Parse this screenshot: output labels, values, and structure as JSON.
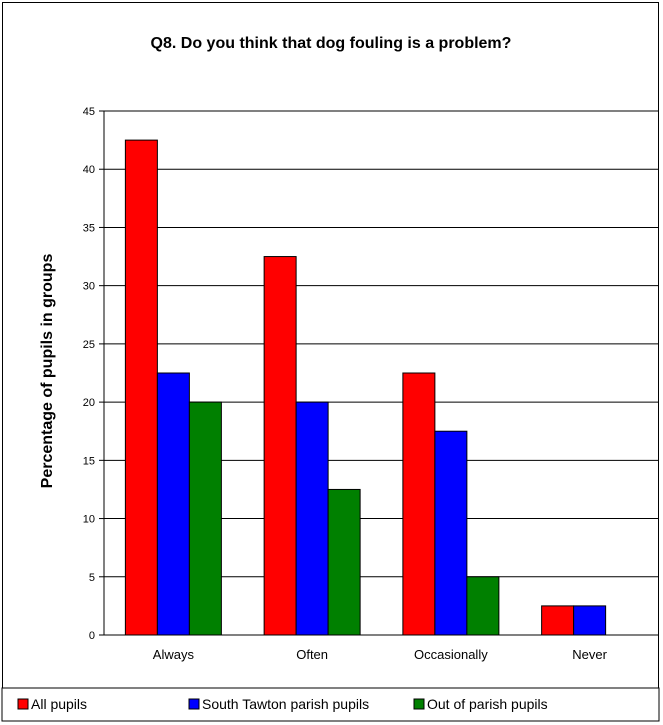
{
  "chart_data": {
    "type": "bar",
    "title": "Q8. Do you think that dog fouling is a problem?",
    "xlabel": "",
    "ylabel": "Percentage of pupils in groups",
    "ylim": [
      0,
      45
    ],
    "ytick_step": 5,
    "grid": true,
    "legend_position": "bottom",
    "categories": [
      "Always",
      "Often",
      "Occasionally",
      "Never"
    ],
    "series": [
      {
        "name": "All pupils",
        "color": "#ff0000",
        "values": [
          42.5,
          32.5,
          22.5,
          2.5
        ]
      },
      {
        "name": "South Tawton parish pupils",
        "color": "#0000ff",
        "values": [
          22.5,
          20,
          17.5,
          2.5
        ]
      },
      {
        "name": "Out of parish pupils",
        "color": "#008000",
        "values": [
          20,
          12.5,
          5,
          0
        ]
      }
    ]
  }
}
